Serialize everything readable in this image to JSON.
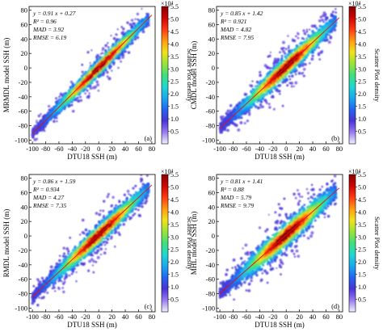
{
  "colorbar_gradient": [
    "#f2f2ff",
    "#9a7cf0",
    "#4a33d6",
    "#2266ee",
    "#1aa8f0",
    "#22d6d0",
    "#3fe07a",
    "#9ae23a",
    "#f2e21c",
    "#ff9a10",
    "#ff3a10",
    "#cc0606",
    "#8a0000"
  ],
  "chart_data": [
    {
      "type": "scatter",
      "panel_label": "(a)",
      "xlabel": "DTU18 SSH (m)",
      "ylabel": "MRMDL model SSH (m)",
      "xlim": [
        -105,
        85
      ],
      "ylim": [
        -105,
        85
      ],
      "x_ticks": [
        "-100",
        "-80",
        "-60",
        "-40",
        "-20",
        "0",
        "20",
        "40",
        "60",
        "80"
      ],
      "y_ticks": [
        "-100",
        "-80",
        "-60",
        "-40",
        "-20",
        "0",
        "20",
        "40",
        "60",
        "80"
      ],
      "stats": [
        "y = 0.91 x + 0.27",
        "R² = 0.96",
        "MAD = 3.92",
        "RMSE = 6.19"
      ],
      "fit": {
        "slope": 0.91,
        "intercept": 0.27
      },
      "colorbar": {
        "label": "Scatter Plot density",
        "exponent": "×10⁴",
        "ticks": [
          "0.5",
          "1.0",
          "1.5",
          "2.0",
          "2.5",
          "3.0",
          "3.5",
          "4.0",
          "4.5",
          "5.0",
          "5.5"
        ],
        "range": [
          0,
          5.5
        ]
      }
    },
    {
      "type": "scatter",
      "panel_label": "(b)",
      "xlabel": "DTU18 SSH (m)",
      "ylabel": "CMDL model SSH (m)",
      "xlim": [
        -105,
        85
      ],
      "ylim": [
        -105,
        85
      ],
      "x_ticks": [
        "-100",
        "-80",
        "-60",
        "-40",
        "-20",
        "0",
        "20",
        "40",
        "60",
        "80"
      ],
      "y_ticks": [
        "-100",
        "-80",
        "-60",
        "-40",
        "-20",
        "0",
        "20",
        "40",
        "60",
        "80"
      ],
      "stats": [
        "y = 0.85 x + 1.42",
        "R² = 0.921",
        "MAD = 4.82",
        "RMSE = 7.95"
      ],
      "fit": {
        "slope": 0.85,
        "intercept": 1.42
      },
      "colorbar": {
        "label": "Scatter Plot density",
        "exponent": "×10⁴",
        "ticks": [
          "0.5",
          "1.0",
          "1.5",
          "2.0",
          "2.5",
          "3.0",
          "3.5",
          "4.0",
          "4.5",
          "5.0",
          "5.5"
        ],
        "range": [
          0,
          5.5
        ]
      }
    },
    {
      "type": "scatter",
      "panel_label": "(c)",
      "xlabel": "DTU18 SSH (m)",
      "ylabel": "RMDL model SSH (m)",
      "xlim": [
        -105,
        85
      ],
      "ylim": [
        -105,
        85
      ],
      "x_ticks": [
        "-100",
        "-80",
        "-60",
        "-40",
        "-20",
        "0",
        "20",
        "40",
        "60",
        "80"
      ],
      "y_ticks": [
        "-100",
        "-80",
        "-60",
        "-40",
        "-20",
        "0",
        "20",
        "40",
        "60",
        "80"
      ],
      "stats": [
        "y = 0.86 x + 1.59",
        "R² = 0.934",
        "MAD = 4.27",
        "RMSE = 7.35"
      ],
      "fit": {
        "slope": 0.86,
        "intercept": 1.59
      },
      "colorbar": {
        "label": "Scatter Plot density",
        "exponent": "×10⁴",
        "ticks": [
          "0.5",
          "1.0",
          "1.5",
          "2.0",
          "2.5",
          "3.0",
          "3.5",
          "4.0",
          "4.5",
          "5.0",
          "5.5"
        ],
        "range": [
          0,
          5.5
        ]
      }
    },
    {
      "type": "scatter",
      "panel_label": "(d)",
      "xlabel": "DTU18 SSH (m)",
      "ylabel": "MHL model SSH (m)",
      "xlim": [
        -105,
        85
      ],
      "ylim": [
        -105,
        85
      ],
      "x_ticks": [
        "-100",
        "-80",
        "-60",
        "-40",
        "-20",
        "0",
        "20",
        "40",
        "60",
        "80"
      ],
      "y_ticks": [
        "-100",
        "-80",
        "-60",
        "-40",
        "-20",
        "0",
        "20",
        "40",
        "60",
        "80"
      ],
      "stats": [
        "y = 0.81 x + 1.41",
        "R² = 0.88",
        "MAD = 5.79",
        "RMSE = 9.79"
      ],
      "fit": {
        "slope": 0.81,
        "intercept": 1.41
      },
      "colorbar": {
        "label": "Scatter Plot density",
        "exponent": "×10⁴",
        "ticks": [
          "0.5",
          "1.0",
          "1.5",
          "2.0",
          "2.5",
          "3.0",
          "3.5",
          "4.0",
          "4.5",
          "5.0",
          "5.5"
        ],
        "range": [
          0,
          5.5
        ]
      }
    }
  ]
}
